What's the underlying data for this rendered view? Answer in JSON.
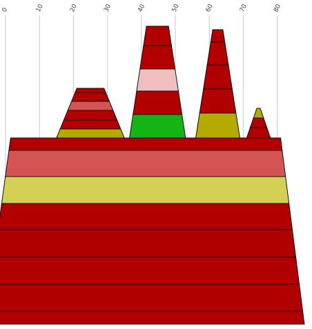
{
  "chart_data": {
    "type": "area",
    "title": "",
    "xlabel": "",
    "ylabel": "",
    "grid": true,
    "legend": "none",
    "xlim": [
      0,
      90
    ],
    "ticks": [
      "0",
      "10",
      "20",
      "30",
      "40",
      "50",
      "60",
      "70",
      "80"
    ],
    "colors": {
      "dark_red": "#b20000",
      "salmon": "#d45454",
      "light_pink": "#f0c0c0",
      "yellow": "#d4d054",
      "olive": "#b4aa00",
      "green": "#14b414",
      "outline": "#111111",
      "grid": "#c8c8c8"
    },
    "shapes": [
      {
        "name": "base",
        "bands": [
          {
            "color": "#b20000",
            "bottom": [
              -6,
              88
            ],
            "top": [
              -5,
              87.5
            ]
          },
          {
            "color": "#b20000",
            "bottom": [
              -5,
              87.5
            ],
            "top": [
              -4,
              86.5
            ]
          },
          {
            "color": "#b20000",
            "bottom": [
              -4,
              86.5
            ],
            "top": [
              -3,
              85.5
            ]
          },
          {
            "color": "#b20000",
            "bottom": [
              -3,
              85.5
            ],
            "top": [
              -2,
              84.5
            ]
          },
          {
            "color": "#b20000",
            "bottom": [
              -2,
              84.5
            ],
            "top": [
              -1,
              83.5
            ]
          },
          {
            "color": "#d4d054",
            "bottom": [
              -1,
              83.5
            ],
            "top": [
              0,
              82.5
            ]
          },
          {
            "color": "#d45454",
            "bottom": [
              0,
              82.5
            ],
            "top": [
              1,
              81.5
            ]
          },
          {
            "color": "#b20000",
            "bottom": [
              1,
              81.5
            ],
            "top": [
              1.5,
              81
            ]
          }
        ]
      },
      {
        "name": "peak-1",
        "bands": [
          {
            "color": "#b4aa00",
            "bottom": [
              15,
              35
            ],
            "top": [
              16,
              34
            ]
          },
          {
            "color": "#b20000",
            "bottom": [
              16,
              34
            ],
            "top": [
              17,
              33
            ]
          },
          {
            "color": "#b20000",
            "bottom": [
              17,
              33
            ],
            "top": [
              18,
              32
            ]
          },
          {
            "color": "#d45454",
            "bottom": [
              18,
              32
            ],
            "top": [
              19,
              31
            ]
          },
          {
            "color": "#b20000",
            "bottom": [
              19,
              31
            ],
            "top": [
              20,
              30
            ]
          },
          {
            "color": "#b20000",
            "bottom": [
              20,
              30
            ],
            "top": [
              21,
              29
            ]
          }
        ]
      },
      {
        "name": "peak-2",
        "bands": [
          {
            "color": "#14b414",
            "bottom": [
              36.5,
              53
            ],
            "top": [
              37.5,
              52
            ]
          },
          {
            "color": "#b20000",
            "bottom": [
              37.5,
              52
            ],
            "top": [
              38.5,
              51
            ]
          },
          {
            "color": "#f0c0c0",
            "bottom": [
              38.5,
              51
            ],
            "top": [
              39.5,
              50
            ]
          },
          {
            "color": "#b20000",
            "bottom": [
              39.5,
              50
            ],
            "top": [
              40.5,
              49
            ]
          },
          {
            "color": "#b20000",
            "bottom": [
              40.5,
              49
            ],
            "top": [
              41.5,
              48
            ]
          }
        ]
      },
      {
        "name": "peak-3",
        "bands": [
          {
            "color": "#b4aa00",
            "bottom": [
              56,
              69
            ],
            "top": [
              57,
              68
            ]
          },
          {
            "color": "#b20000",
            "bottom": [
              57,
              68
            ],
            "top": [
              58,
              67
            ]
          },
          {
            "color": "#b20000",
            "bottom": [
              58,
              67
            ],
            "top": [
              59,
              66
            ]
          },
          {
            "color": "#b20000",
            "bottom": [
              59,
              66
            ],
            "top": [
              60,
              65
            ]
          },
          {
            "color": "#b20000",
            "bottom": [
              60,
              65
            ],
            "top": [
              61,
              64
            ]
          }
        ]
      },
      {
        "name": "peak-4",
        "bands": [
          {
            "color": "#b20000",
            "bottom": [
              71,
              78
            ],
            "top": [
              72,
              77
            ]
          },
          {
            "color": "#b20000",
            "bottom": [
              72,
              77
            ],
            "top": [
              73,
              76
            ]
          },
          {
            "color": "#b4aa00",
            "bottom": [
              73,
              76
            ],
            "top": [
              74,
              75
            ]
          }
        ]
      }
    ]
  }
}
